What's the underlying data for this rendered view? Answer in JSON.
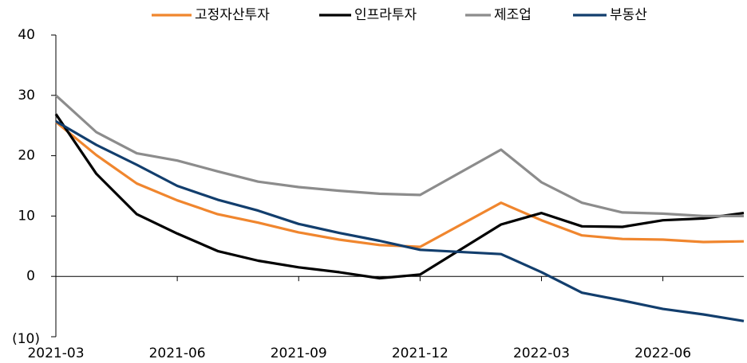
{
  "chart_data": {
    "type": "line",
    "x": [
      "2021-03",
      "2021-04",
      "2021-05",
      "2021-06",
      "2021-07",
      "2021-08",
      "2021-09",
      "2021-10",
      "2021-11",
      "2021-12",
      "2022-02",
      "2022-03",
      "2022-04",
      "2022-05",
      "2022-06",
      "2022-07",
      "2022-08"
    ],
    "series": [
      {
        "name": "고정자산투자",
        "color": "#f0862e",
        "values": [
          25.6,
          20.1,
          15.4,
          12.6,
          10.3,
          8.9,
          7.3,
          6.1,
          5.2,
          4.9,
          12.2,
          9.3,
          6.8,
          6.2,
          6.1,
          5.7,
          5.8
        ]
      },
      {
        "name": "인프라투자",
        "color": "#000000",
        "values": [
          26.9,
          17.0,
          10.3,
          7.1,
          4.2,
          2.6,
          1.5,
          0.7,
          -0.3,
          0.3,
          8.6,
          10.5,
          8.3,
          8.2,
          9.3,
          9.6,
          10.5
        ]
      },
      {
        "name": "제조업",
        "color": "#8c8c8c",
        "values": [
          30.0,
          23.9,
          20.4,
          19.2,
          17.4,
          15.7,
          14.8,
          14.2,
          13.7,
          13.5,
          21.0,
          15.6,
          12.2,
          10.6,
          10.4,
          10.0,
          10.0
        ]
      },
      {
        "name": "부동산",
        "color": "#123e6d",
        "values": [
          25.7,
          21.8,
          18.5,
          15.0,
          12.7,
          10.9,
          8.7,
          7.2,
          5.9,
          4.4,
          3.7,
          0.7,
          -2.7,
          -4.0,
          -5.4,
          -6.3,
          -7.4
        ]
      }
    ],
    "xlim": [
      "2021-03",
      "2022-08"
    ],
    "xticks": [
      "2021-03",
      "2021-06",
      "2021-09",
      "2021-12",
      "2022-03",
      "2022-06"
    ],
    "ylim": [
      -10,
      40
    ],
    "yticks": [
      40,
      30,
      20,
      10,
      0,
      {
        "value": -10,
        "label": "(10)"
      }
    ],
    "negative_tick_color": "#ff0000",
    "legend": "top"
  }
}
